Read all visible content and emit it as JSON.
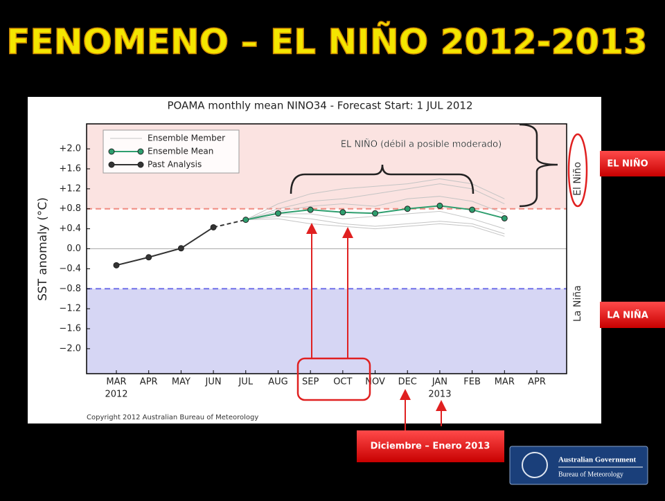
{
  "title": "FENOMENO – EL NIÑO 2012-2013",
  "chart_data": {
    "type": "line",
    "title": "POAMA monthly mean NINO34 - Forecast Start: 1 JUL 2012",
    "y_label": "SST anomaly (°C)",
    "copyright": "Copyright 2012 Australian Bureau of Meteorology",
    "categories": [
      "MAR",
      "APR",
      "MAY",
      "JUN",
      "JUL",
      "AUG",
      "SEP",
      "OCT",
      "NOV",
      "DEC",
      "JAN",
      "FEB",
      "MAR",
      "APR"
    ],
    "x_sublabels": [
      "2012",
      null,
      null,
      null,
      null,
      null,
      null,
      null,
      null,
      null,
      "2013",
      null,
      null,
      null
    ],
    "ylim": [
      -2.5,
      2.5
    ],
    "yticks": [
      {
        "value": 2.0,
        "label": "+2.0"
      },
      {
        "value": 1.6,
        "label": "+1.6"
      },
      {
        "value": 1.2,
        "label": "+1.2"
      },
      {
        "value": 0.8,
        "label": "+0.8"
      },
      {
        "value": 0.4,
        "label": "+0.4"
      },
      {
        "value": 0.0,
        "label": "0.0"
      },
      {
        "value": -0.4,
        "label": "−0.4"
      },
      {
        "value": -0.8,
        "label": "−0.8"
      },
      {
        "value": -1.2,
        "label": "−1.2"
      },
      {
        "value": -1.6,
        "label": "−1.6"
      },
      {
        "value": -2.0,
        "label": "−2.0"
      }
    ],
    "thresholds": [
      {
        "value": 0.8,
        "color": "#f08a80",
        "fill": "#fbe3e1",
        "label": "El Niño"
      },
      {
        "value": -0.8,
        "color": "#7070e8",
        "fill": "#d6d6f4",
        "label": "La Niña"
      }
    ],
    "zero_line": true,
    "legend": "upper left",
    "series": [
      {
        "name": "Ensemble Member",
        "color": "#c4c4c4",
        "values": [
          [
            null,
            null,
            null,
            null,
            0.58,
            0.8,
            0.95,
            1.0,
            1.1,
            1.2,
            1.3,
            1.2,
            0.9,
            null
          ],
          [
            null,
            null,
            null,
            null,
            0.58,
            0.65,
            0.6,
            0.5,
            0.45,
            0.5,
            0.55,
            0.5,
            0.3,
            null
          ],
          [
            null,
            null,
            null,
            null,
            0.58,
            0.75,
            0.85,
            0.9,
            0.85,
            1.0,
            1.05,
            0.95,
            0.7,
            null
          ],
          [
            null,
            null,
            null,
            null,
            0.58,
            0.7,
            0.7,
            0.6,
            0.65,
            0.7,
            0.75,
            0.6,
            0.4,
            null
          ],
          [
            null,
            null,
            null,
            null,
            0.58,
            0.9,
            1.1,
            1.2,
            1.25,
            1.3,
            1.4,
            1.3,
            1.0,
            null
          ],
          [
            null,
            null,
            null,
            null,
            0.58,
            0.6,
            0.5,
            0.45,
            0.4,
            0.45,
            0.5,
            0.45,
            0.25,
            null
          ]
        ]
      },
      {
        "name": "Ensemble Mean",
        "color": "#2e9e6e",
        "values": [
          null,
          null,
          null,
          null,
          0.58,
          0.71,
          0.78,
          0.73,
          0.71,
          0.8,
          0.86,
          0.78,
          0.61,
          null
        ]
      },
      {
        "name": "Past Analysis",
        "color": "#333333",
        "values": [
          -0.33,
          -0.17,
          0.01,
          0.43,
          null,
          null,
          null,
          null,
          null,
          null,
          null,
          null,
          null,
          null
        ]
      }
    ]
  },
  "annotations": {
    "bracket_label": "EL NIÑO (débil a posible moderado)",
    "el_nino_box": "EL NIÑO",
    "la_nina_box": "LA NIÑA",
    "dec_jan_box": "Diciembre – Enero 2013"
  },
  "logo": {
    "line1": "Australian Government",
    "line2": "Bureau of Meteorology"
  }
}
